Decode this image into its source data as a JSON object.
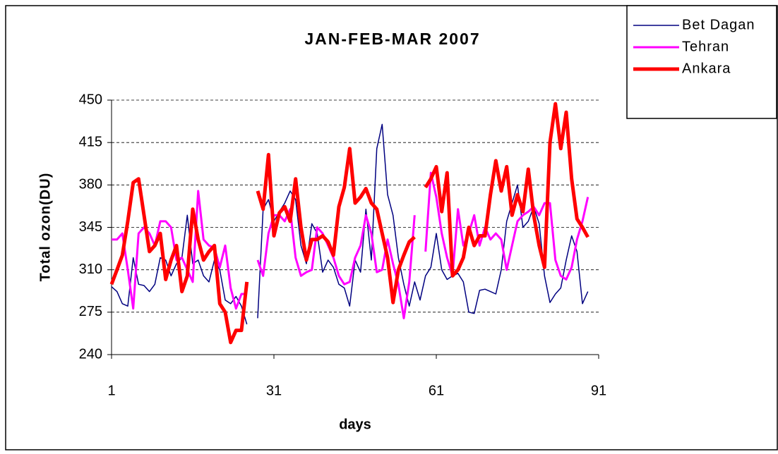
{
  "chart_data": {
    "type": "line",
    "title": "JAN-FEB-MAR 2007",
    "x_label": "days",
    "y_label": "Total ozon(DU)",
    "x": [
      1,
      2,
      3,
      4,
      5,
      6,
      7,
      8,
      9,
      10,
      11,
      12,
      13,
      14,
      15,
      16,
      17,
      18,
      19,
      20,
      21,
      22,
      23,
      24,
      25,
      26,
      27,
      28,
      29,
      30,
      31,
      32,
      33,
      34,
      35,
      36,
      37,
      38,
      39,
      40,
      41,
      42,
      43,
      44,
      45,
      46,
      47,
      48,
      49,
      50,
      51,
      52,
      53,
      54,
      55,
      56,
      57,
      58,
      59,
      60,
      61,
      62,
      63,
      64,
      65,
      66,
      67,
      68,
      69,
      70,
      71,
      72,
      73,
      74,
      75,
      76,
      77,
      78,
      79,
      80,
      81,
      82,
      83,
      84,
      85,
      86,
      87,
      88,
      89
    ],
    "xlim": [
      1,
      91
    ],
    "xticks": [
      1,
      31,
      61,
      91
    ],
    "ylim": [
      240,
      450
    ],
    "yticks": [
      240,
      275,
      310,
      345,
      380,
      415,
      450
    ],
    "grid": true,
    "series": [
      {
        "name": "Bet Dagan",
        "color": "#000080",
        "width": 1.5,
        "values": [
          296,
          292,
          282,
          280,
          320,
          298,
          297,
          292,
          298,
          320,
          318,
          305,
          315,
          320,
          355,
          315,
          318,
          305,
          300,
          318,
          310,
          285,
          282,
          288,
          280,
          265,
          null,
          270,
          360,
          368,
          350,
          358,
          365,
          375,
          368,
          330,
          315,
          348,
          340,
          308,
          318,
          312,
          298,
          295,
          280,
          318,
          308,
          360,
          318,
          410,
          430,
          372,
          355,
          320,
          298,
          280,
          300,
          285,
          305,
          312,
          340,
          310,
          302,
          305,
          307,
          300,
          275,
          274,
          293,
          294,
          292,
          290,
          310,
          350,
          365,
          380,
          345,
          350,
          362,
          348,
          305,
          283,
          290,
          295,
          318,
          338,
          325,
          282,
          292
        ]
      },
      {
        "name": "Tehran",
        "color": "#ff00ff",
        "width": 3,
        "values": [
          335,
          335,
          340,
          310,
          278,
          340,
          345,
          340,
          330,
          350,
          350,
          345,
          318,
          320,
          310,
          300,
          375,
          335,
          330,
          328,
          312,
          330,
          295,
          278,
          290,
          290,
          null,
          318,
          305,
          340,
          355,
          355,
          350,
          360,
          320,
          305,
          308,
          310,
          345,
          340,
          330,
          320,
          305,
          298,
          300,
          320,
          330,
          355,
          340,
          308,
          310,
          335,
          315,
          298,
          270,
          300,
          355,
          null,
          325,
          390,
          370,
          340,
          320,
          305,
          360,
          330,
          340,
          355,
          330,
          345,
          335,
          340,
          335,
          310,
          330,
          350,
          355,
          358,
          362,
          355,
          365,
          365,
          318,
          305,
          302,
          312,
          335,
          350,
          370
        ]
      },
      {
        "name": "Ankara",
        "color": "#ff0000",
        "width": 5,
        "values": [
          298,
          310,
          322,
          350,
          382,
          385,
          355,
          325,
          330,
          340,
          302,
          318,
          330,
          292,
          305,
          360,
          335,
          318,
          325,
          330,
          282,
          275,
          250,
          260,
          260,
          300,
          null,
          375,
          360,
          405,
          338,
          357,
          362,
          350,
          385,
          345,
          318,
          335,
          335,
          338,
          333,
          322,
          362,
          378,
          410,
          365,
          370,
          377,
          365,
          360,
          340,
          320,
          283,
          310,
          322,
          333,
          337,
          null,
          378,
          385,
          395,
          358,
          390,
          305,
          310,
          320,
          345,
          330,
          338,
          338,
          372,
          400,
          375,
          395,
          355,
          372,
          358,
          393,
          355,
          330,
          312,
          415,
          447,
          410,
          440,
          385,
          352,
          345,
          337
        ]
      }
    ]
  }
}
